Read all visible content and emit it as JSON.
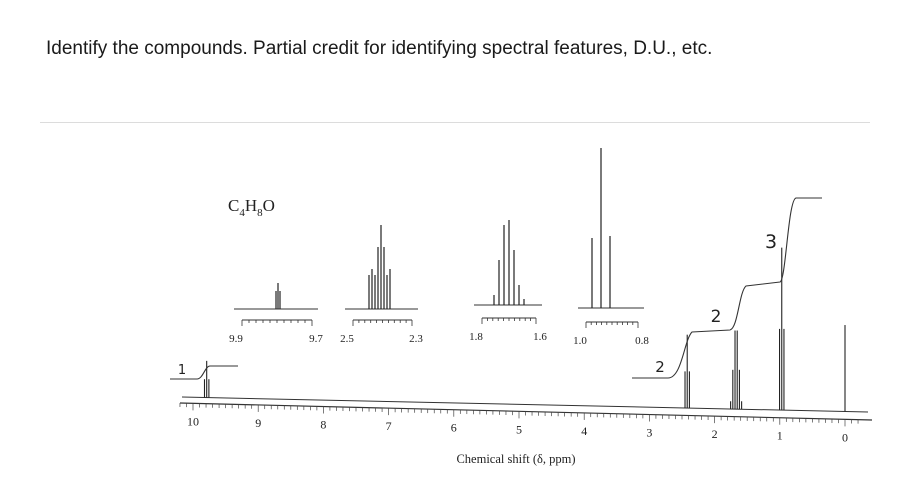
{
  "question": "Identify the compounds. Partial credit for identifying spectral features, D.U., etc.",
  "chart_data": {
    "type": "nmr_spectrum",
    "formula": {
      "main": "C",
      "sub1": "4",
      "mid": "H",
      "sub2": "8",
      "end": "O"
    },
    "xlabel": "Chemical shift (δ, ppm)",
    "xlim": [
      10.5,
      -0.3
    ],
    "x_ticks": [
      "10",
      "9",
      "8",
      "7",
      "6",
      "5",
      "4",
      "3",
      "2",
      "1",
      "0"
    ],
    "peaks": [
      {
        "shift": 9.79,
        "multiplicity": 3,
        "height": 0.14
      },
      {
        "shift": 2.42,
        "multiplicity": 3,
        "height": 0.28
      },
      {
        "shift": 1.67,
        "multiplicity": 6,
        "height": 0.3
      },
      {
        "shift": 0.97,
        "multiplicity": 3,
        "height": 0.62
      },
      {
        "shift": 0.0,
        "multiplicity": 1,
        "height": 0.33
      }
    ],
    "insets": [
      {
        "ticks": [
          "9.9",
          "9.7"
        ]
      },
      {
        "ticks": [
          "2.5",
          "2.3"
        ]
      },
      {
        "ticks": [
          "1.8",
          "1.6"
        ]
      },
      {
        "ticks": [
          "1.0",
          "0.8"
        ]
      }
    ],
    "integration_labels": [
      "1",
      "2",
      "2",
      "3"
    ]
  }
}
